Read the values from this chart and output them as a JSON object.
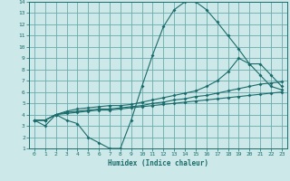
{
  "background_color": "#cde8e8",
  "grid_color": "#6aabab",
  "line_color": "#1a6b6b",
  "xlim": [
    -0.5,
    23.5
  ],
  "ylim": [
    1,
    14
  ],
  "xlabel": "Humidex (Indice chaleur)",
  "xticks": [
    0,
    1,
    2,
    3,
    4,
    5,
    6,
    7,
    8,
    9,
    10,
    11,
    12,
    13,
    14,
    15,
    16,
    17,
    18,
    19,
    20,
    21,
    22,
    23
  ],
  "yticks": [
    1,
    2,
    3,
    4,
    5,
    6,
    7,
    8,
    9,
    10,
    11,
    12,
    13,
    14
  ],
  "series": [
    {
      "x": [
        0,
        1,
        2,
        3,
        4,
        5,
        6,
        7,
        8,
        9,
        10,
        11,
        12,
        13,
        14,
        15,
        16,
        17,
        18,
        19,
        20,
        21,
        22,
        23
      ],
      "y": [
        3.5,
        3.0,
        4.0,
        3.5,
        3.2,
        2.0,
        1.5,
        1.0,
        1.0,
        3.5,
        6.5,
        9.3,
        11.8,
        13.3,
        14.0,
        14.0,
        13.3,
        12.2,
        11.0,
        9.8,
        8.5,
        7.5,
        6.5,
        6.2
      ]
    },
    {
      "x": [
        0,
        1,
        2,
        3,
        4,
        5,
        6,
        7,
        8,
        9,
        10,
        11,
        12,
        13,
        14,
        15,
        16,
        17,
        18,
        19,
        20,
        21,
        22,
        23
      ],
      "y": [
        3.5,
        3.5,
        4.0,
        4.3,
        4.5,
        4.6,
        4.7,
        4.8,
        4.8,
        4.9,
        5.1,
        5.3,
        5.5,
        5.7,
        5.9,
        6.1,
        6.5,
        7.0,
        7.8,
        9.0,
        8.5,
        8.5,
        7.5,
        6.5
      ]
    },
    {
      "x": [
        0,
        1,
        2,
        3,
        4,
        5,
        6,
        7,
        8,
        9,
        10,
        11,
        12,
        13,
        14,
        15,
        16,
        17,
        18,
        19,
        20,
        21,
        22,
        23
      ],
      "y": [
        3.5,
        3.5,
        4.0,
        4.2,
        4.3,
        4.4,
        4.5,
        4.5,
        4.6,
        4.7,
        4.8,
        5.0,
        5.1,
        5.3,
        5.4,
        5.6,
        5.7,
        5.9,
        6.1,
        6.3,
        6.5,
        6.7,
        6.8,
        6.9
      ]
    },
    {
      "x": [
        0,
        1,
        2,
        3,
        4,
        5,
        6,
        7,
        8,
        9,
        10,
        11,
        12,
        13,
        14,
        15,
        16,
        17,
        18,
        19,
        20,
        21,
        22,
        23
      ],
      "y": [
        3.5,
        3.5,
        4.0,
        4.1,
        4.2,
        4.3,
        4.4,
        4.4,
        4.5,
        4.6,
        4.7,
        4.8,
        4.9,
        5.0,
        5.1,
        5.2,
        5.3,
        5.4,
        5.5,
        5.6,
        5.7,
        5.8,
        5.9,
        6.0
      ]
    }
  ]
}
